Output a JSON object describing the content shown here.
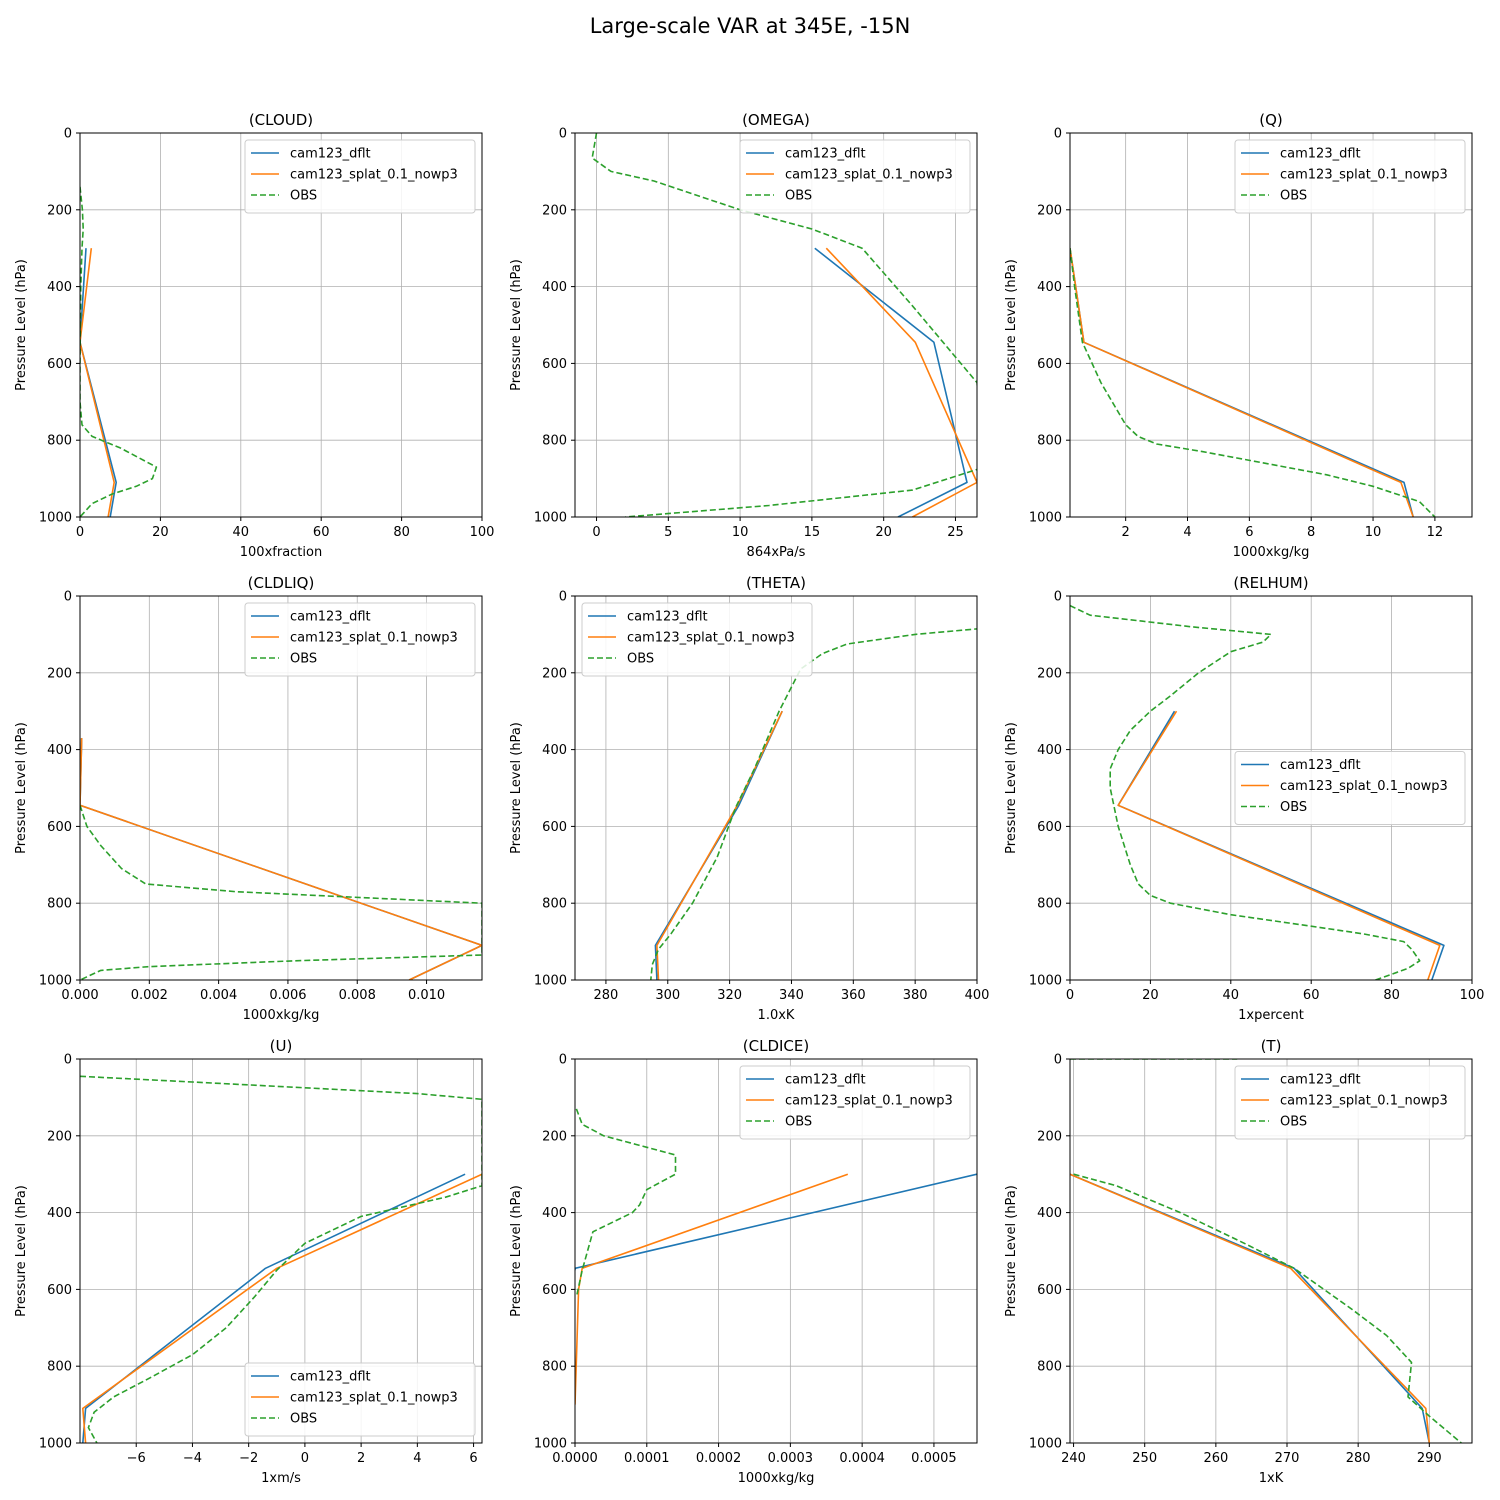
{
  "figure": {
    "title": "Large-scale VAR at 345E, -15N"
  },
  "colors": {
    "dflt": "#1f77b4",
    "splat": "#ff7f0e",
    "obs": "#2ca02c",
    "grid": "#b0b0b0"
  },
  "chart_data": [
    {
      "type": "line",
      "title": "(CLOUD)",
      "xlabel": "100xfraction",
      "ylabel": "Pressure Level (hPa)",
      "xlim": [
        0,
        100
      ],
      "ylim": [
        1000,
        0
      ],
      "xticks": [
        0,
        20,
        40,
        60,
        80,
        100
      ],
      "xtick_labels": [
        "0",
        "20",
        "40",
        "60",
        "80",
        "100"
      ],
      "yticks": [
        0,
        200,
        400,
        600,
        800,
        1000
      ],
      "ytick_labels": [
        "0",
        "200",
        "400",
        "600",
        "800",
        "1000"
      ],
      "legend": "upper right",
      "series": [
        {
          "name": "cam123_dflt",
          "style": "solid",
          "x": [
            1.5,
            0,
            9,
            7.5
          ],
          "y": [
            300,
            545,
            910,
            1000
          ]
        },
        {
          "name": "cam123_splat_0.1_nowp3",
          "style": "solid",
          "x": [
            2.8,
            0,
            8.5,
            7
          ],
          "y": [
            300,
            545,
            910,
            1000
          ]
        },
        {
          "name": "OBS",
          "style": "dashed",
          "x": [
            0,
            0.6,
            0.8,
            0.5,
            0.2,
            0.1,
            0,
            0,
            0.5,
            3,
            10,
            19,
            18,
            14,
            8,
            3,
            0
          ],
          "y": [
            140,
            200,
            250,
            300,
            400,
            500,
            600,
            700,
            760,
            790,
            820,
            870,
            900,
            920,
            940,
            965,
            1000
          ]
        }
      ]
    },
    {
      "type": "line",
      "title": "(OMEGA)",
      "xlabel": "864xPa/s",
      "ylabel": "Pressure Level (hPa)",
      "xlim": [
        -1.5,
        26.5
      ],
      "ylim": [
        1000,
        0
      ],
      "xticks": [
        0,
        5,
        10,
        15,
        20,
        25
      ],
      "xtick_labels": [
        "0",
        "5",
        "10",
        "15",
        "20",
        "25"
      ],
      "yticks": [
        0,
        200,
        400,
        600,
        800,
        1000
      ],
      "ytick_labels": [
        "0",
        "200",
        "400",
        "600",
        "800",
        "1000"
      ],
      "legend": "upper right",
      "series": [
        {
          "name": "cam123_dflt",
          "style": "solid",
          "x": [
            15.2,
            23.5,
            25.8,
            21
          ],
          "y": [
            300,
            545,
            910,
            1000
          ]
        },
        {
          "name": "cam123_splat_0.1_nowp3",
          "style": "solid",
          "x": [
            16,
            22.2,
            26.5,
            22
          ],
          "y": [
            300,
            545,
            910,
            1000
          ]
        },
        {
          "name": "OBS",
          "style": "dashed",
          "x": [
            0,
            -0.3,
            1,
            4,
            8,
            10,
            15,
            18.5,
            22,
            26.5,
            27,
            22,
            12,
            2
          ],
          "y": [
            0,
            65,
            100,
            125,
            175,
            200,
            250,
            300,
            450,
            650,
            870,
            930,
            970,
            1000
          ]
        }
      ]
    },
    {
      "type": "line",
      "title": "(Q)",
      "xlabel": "1000xkg/kg",
      "ylabel": "Pressure Level (hPa)",
      "xlim": [
        0.2,
        13.2
      ],
      "ylim": [
        1000,
        0
      ],
      "xticks": [
        2,
        4,
        6,
        8,
        10,
        12
      ],
      "xtick_labels": [
        "2",
        "4",
        "6",
        "8",
        "10",
        "12"
      ],
      "yticks": [
        0,
        200,
        400,
        600,
        800,
        1000
      ],
      "ytick_labels": [
        "0",
        "200",
        "400",
        "600",
        "800",
        "1000"
      ],
      "legend": "upper right",
      "series": [
        {
          "name": "cam123_dflt",
          "style": "solid",
          "x": [
            0.2,
            0.65,
            11,
            11.3
          ],
          "y": [
            300,
            545,
            910,
            1000
          ]
        },
        {
          "name": "cam123_splat_0.1_nowp3",
          "style": "solid",
          "x": [
            0.2,
            0.65,
            10.9,
            11.3
          ],
          "y": [
            300,
            545,
            910,
            1000
          ]
        },
        {
          "name": "OBS",
          "style": "dashed",
          "x": [
            0.2,
            0.35,
            0.6,
            1.2,
            2,
            2.4,
            3,
            4.5,
            6.5,
            8.5,
            10,
            11.5,
            12
          ],
          "y": [
            300,
            400,
            545,
            650,
            760,
            790,
            810,
            830,
            860,
            890,
            920,
            960,
            1000
          ]
        }
      ]
    },
    {
      "type": "line",
      "title": "(CLDLIQ)",
      "xlabel": "1000xkg/kg",
      "ylabel": "Pressure Level (hPa)",
      "xlim": [
        0,
        0.0116
      ],
      "ylim": [
        1000,
        0
      ],
      "xticks": [
        0,
        0.002,
        0.004,
        0.006,
        0.008,
        0.01
      ],
      "xtick_labels": [
        "0.000",
        "0.002",
        "0.004",
        "0.006",
        "0.008",
        "0.010"
      ],
      "yticks": [
        0,
        200,
        400,
        600,
        800,
        1000
      ],
      "ytick_labels": [
        "0",
        "200",
        "400",
        "600",
        "800",
        "1000"
      ],
      "legend": "upper right",
      "series": [
        {
          "name": "cam123_dflt",
          "style": "solid",
          "x": [
            5e-05,
            0,
            0.0116,
            0.0095
          ],
          "y": [
            370,
            545,
            910,
            1000
          ]
        },
        {
          "name": "cam123_splat_0.1_nowp3",
          "style": "solid",
          "x": [
            5e-05,
            0,
            0.0116,
            0.0095
          ],
          "y": [
            370,
            545,
            910,
            1000
          ]
        },
        {
          "name": "OBS",
          "style": "dashed",
          "x": [
            0,
            0.0002,
            0.0006,
            0.0012,
            0.0019,
            0.0045,
            0.0116,
            0.0116,
            0.0062,
            0.002,
            0.0006,
            0
          ],
          "y": [
            545,
            600,
            650,
            710,
            750,
            770,
            800,
            935,
            950,
            965,
            975,
            1000
          ]
        }
      ]
    },
    {
      "type": "line",
      "title": "(THETA)",
      "xlabel": "1.0xK",
      "ylabel": "Pressure Level (hPa)",
      "xlim": [
        270,
        400
      ],
      "ylim": [
        1000,
        0
      ],
      "xticks": [
        280,
        300,
        320,
        340,
        360,
        380,
        400
      ],
      "xtick_labels": [
        "280",
        "300",
        "320",
        "340",
        "360",
        "380",
        "400"
      ],
      "yticks": [
        0,
        200,
        400,
        600,
        800,
        1000
      ],
      "ytick_labels": [
        "0",
        "200",
        "400",
        "600",
        "800",
        "1000"
      ],
      "legend": "upper left",
      "series": [
        {
          "name": "cam123_dflt",
          "style": "solid",
          "x": [
            337,
            323,
            296,
            296.5
          ],
          "y": [
            300,
            545,
            910,
            1000
          ]
        },
        {
          "name": "cam123_splat_0.1_nowp3",
          "style": "solid",
          "x": [
            337,
            322.5,
            296.5,
            297
          ],
          "y": [
            300,
            545,
            910,
            1000
          ]
        },
        {
          "name": "OBS",
          "style": "dashed",
          "x": [
            401,
            380,
            358,
            350,
            343,
            336,
            328,
            322,
            316,
            308,
            301,
            297,
            295,
            294.5
          ],
          "y": [
            85,
            100,
            125,
            150,
            190,
            300,
            450,
            550,
            680,
            800,
            880,
            920,
            960,
            1000
          ]
        }
      ]
    },
    {
      "type": "line",
      "title": "(RELHUM)",
      "xlabel": "1xpercent",
      "ylabel": "Pressure Level (hPa)",
      "xlim": [
        0,
        100
      ],
      "ylim": [
        1000,
        0
      ],
      "xticks": [
        0,
        20,
        40,
        60,
        80,
        100
      ],
      "xtick_labels": [
        "0",
        "20",
        "40",
        "60",
        "80",
        "100"
      ],
      "yticks": [
        0,
        200,
        400,
        600,
        800,
        1000
      ],
      "ytick_labels": [
        "0",
        "200",
        "400",
        "600",
        "800",
        "1000"
      ],
      "legend": "center right",
      "series": [
        {
          "name": "cam123_dflt",
          "style": "solid",
          "x": [
            26,
            12,
            93,
            90
          ],
          "y": [
            300,
            545,
            910,
            1000
          ]
        },
        {
          "name": "cam123_splat_0.1_nowp3",
          "style": "solid",
          "x": [
            26.5,
            12,
            92,
            89
          ],
          "y": [
            300,
            545,
            910,
            1000
          ]
        },
        {
          "name": "OBS",
          "style": "dashed",
          "x": [
            0,
            5,
            30,
            50,
            48,
            40,
            32,
            25,
            20,
            15,
            12,
            10,
            10,
            12,
            15,
            17,
            20,
            25,
            40,
            60,
            73,
            83,
            85,
            87,
            84,
            76
          ],
          "y": [
            25,
            50,
            80,
            100,
            120,
            145,
            200,
            260,
            300,
            350,
            400,
            450,
            500,
            600,
            700,
            750,
            780,
            800,
            830,
            860,
            880,
            900,
            920,
            950,
            970,
            1000
          ]
        }
      ]
    },
    {
      "type": "line",
      "title": "(U)",
      "xlabel": "1xm/s",
      "ylabel": "Pressure Level (hPa)",
      "xlim": [
        -8,
        6.3
      ],
      "ylim": [
        1000,
        0
      ],
      "xticks": [
        -6,
        -4,
        -2,
        0,
        2,
        4,
        6
      ],
      "xtick_labels": [
        "−6",
        "−4",
        "−2",
        "0",
        "2",
        "4",
        "6"
      ],
      "yticks": [
        0,
        200,
        400,
        600,
        800,
        1000
      ],
      "ytick_labels": [
        "0",
        "200",
        "400",
        "600",
        "800",
        "1000"
      ],
      "legend": "lower right",
      "series": [
        {
          "name": "cam123_dflt",
          "style": "solid",
          "x": [
            5.7,
            -1.4,
            -7.8,
            -7.9
          ],
          "y": [
            300,
            545,
            910,
            1000
          ]
        },
        {
          "name": "cam123_splat_0.1_nowp3",
          "style": "solid",
          "x": [
            6.3,
            -1.0,
            -7.9,
            -7.8
          ],
          "y": [
            300,
            545,
            910,
            1000
          ]
        },
        {
          "name": "OBS",
          "style": "dashed",
          "x": [
            -8,
            -4,
            0,
            4,
            6.3,
            6.3,
            5,
            2,
            0,
            -1,
            -1.8,
            -2.8,
            -4,
            -5.5,
            -6.8,
            -7.5,
            -7.7,
            -7.4
          ],
          "y": [
            45,
            60,
            75,
            90,
            105,
            330,
            360,
            410,
            480,
            550,
            620,
            700,
            770,
            830,
            880,
            920,
            960,
            1000
          ]
        }
      ]
    },
    {
      "type": "line",
      "title": "(CLDICE)",
      "xlabel": "1000xkg/kg",
      "ylabel": "Pressure Level (hPa)",
      "xlim": [
        0,
        0.00056
      ],
      "ylim": [
        1000,
        0
      ],
      "xticks": [
        0,
        0.0001,
        0.0002,
        0.0003,
        0.0004,
        0.0005
      ],
      "xtick_labels": [
        "0.0000",
        "0.0001",
        "0.0002",
        "0.0003",
        "0.0004",
        "0.0005"
      ],
      "yticks": [
        0,
        200,
        400,
        600,
        800,
        1000
      ],
      "ytick_labels": [
        "0",
        "200",
        "400",
        "600",
        "800",
        "1000"
      ],
      "legend": "upper right",
      "series": [
        {
          "name": "cam123_dflt",
          "style": "solid",
          "x": [
            0.00056,
            0.0,
            0.0
          ],
          "y": [
            300,
            545,
            550
          ]
        },
        {
          "name": "cam123_splat_0.1_nowp3",
          "style": "solid",
          "x": [
            0.00038,
            1e-05,
            5e-06,
            0.0
          ],
          "y": [
            300,
            545,
            600,
            900
          ]
        },
        {
          "name": "OBS",
          "style": "dashed",
          "x": [
            2e-06,
            1e-05,
            4e-05,
            0.0001,
            0.00014,
            0.00014,
            0.0001,
            9e-05,
            8e-05,
            2.5e-05,
            1e-05,
            2e-06
          ],
          "y": [
            130,
            170,
            200,
            230,
            250,
            300,
            340,
            380,
            400,
            450,
            550,
            620
          ]
        }
      ]
    },
    {
      "type": "line",
      "title": "(T)",
      "xlabel": "1xK",
      "ylabel": "Pressure Level (hPa)",
      "xlim": [
        239.5,
        296
      ],
      "ylim": [
        1000,
        0
      ],
      "xticks": [
        240,
        250,
        260,
        270,
        280,
        290
      ],
      "xtick_labels": [
        "240",
        "250",
        "260",
        "270",
        "280",
        "290"
      ],
      "yticks": [
        0,
        200,
        400,
        600,
        800,
        1000
      ],
      "ytick_labels": [
        "0",
        "200",
        "400",
        "600",
        "800",
        "1000"
      ],
      "legend": "upper right",
      "series": [
        {
          "name": "cam123_dflt",
          "style": "solid",
          "x": [
            239.5,
            271,
            289,
            290
          ],
          "y": [
            300,
            545,
            910,
            1000
          ]
        },
        {
          "name": "cam123_splat_0.1_nowp3",
          "style": "solid",
          "x": [
            239.5,
            270.5,
            289.5,
            290
          ],
          "y": [
            300,
            545,
            910,
            1000
          ]
        },
        {
          "name": "OBS",
          "style": "dashed",
          "x": [
            239.5,
            263
          ],
          "y": [
            0,
            0
          ],
          "extra": {
            "x": [
              240,
              246,
              255,
              264,
              271,
              279,
              284,
              287.5,
              287,
              290,
              294.5
            ],
            "y": [
              300,
              330,
              400,
              480,
              545,
              650,
              720,
              790,
              880,
              930,
              1000
            ]
          }
        }
      ]
    }
  ]
}
